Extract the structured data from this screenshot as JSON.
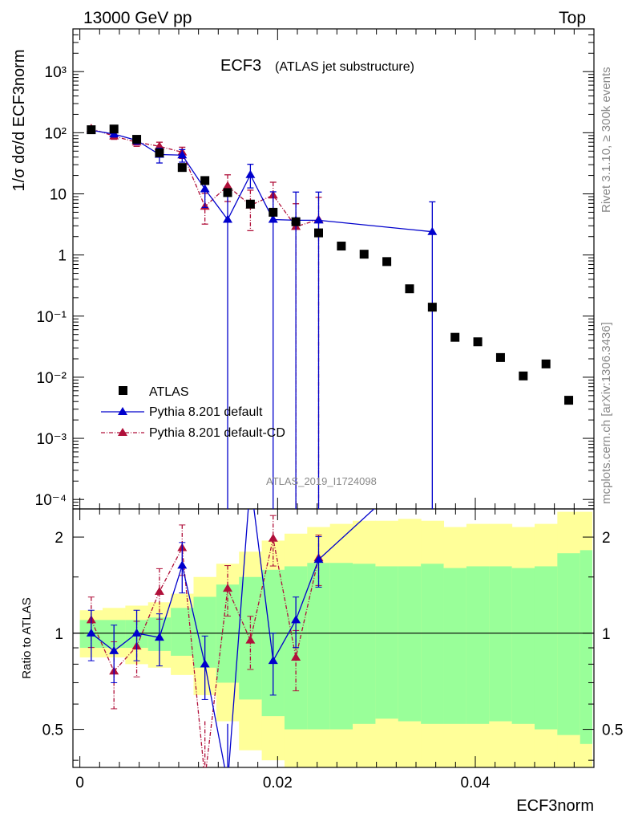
{
  "header": {
    "left": "13000 GeV pp",
    "right": "Top"
  },
  "plot_title": {
    "main": "ECF3",
    "sub": "(ATLAS jet substructure)"
  },
  "side_text": {
    "rivet": "Rivet 3.1.10, ≥ 300k events",
    "mcplots": "mcplots.cern.ch [arXiv:1306.3436]"
  },
  "watermark": "ATLAS_2019_I1724098",
  "axes": {
    "y_top_label": "1/σ dσ/d ECF3norm",
    "y_ratio_label": "Ratio to ATLAS",
    "x_label": "ECF3norm",
    "x_ticks": [
      "0",
      "0.02",
      "0.04"
    ],
    "y_top_ticks": [
      "10⁻⁴",
      "10⁻³",
      "10⁻²",
      "10⁻¹",
      "1",
      "10",
      "10²",
      "10³"
    ],
    "y_ratio_ticks": [
      "0.5",
      "1",
      "2"
    ]
  },
  "legend": [
    {
      "label": "ATLAS",
      "color": "#000000"
    },
    {
      "label": "Pythia 8.201 default",
      "color": "#0000cc"
    },
    {
      "label": "Pythia 8.201 default-CD",
      "color": "#b0103a"
    }
  ],
  "colors": {
    "data": "#000000",
    "default": "#0000cc",
    "cd": "#b0103a",
    "band_outer": "#ffff99",
    "band_inner": "#99ff99"
  },
  "chart_data": {
    "type": "scatter",
    "title": "ECF3 (ATLAS jet substructure)",
    "xlabel": "ECF3norm",
    "ylabel": "1/σ dσ/d ECF3norm",
    "xlim": [
      -0.0007,
      0.052
    ],
    "ylim": [
      7e-05,
      5000
    ],
    "yscale": "log",
    "ratio_ylim": [
      0.38,
      2.45
    ],
    "ratio_yscale": "log",
    "x": [
      0.00115,
      0.00345,
      0.00575,
      0.00805,
      0.01035,
      0.01265,
      0.01495,
      0.01725,
      0.01955,
      0.02185,
      0.02415,
      0.02645,
      0.02875,
      0.03105,
      0.03335,
      0.03565,
      0.03795,
      0.04025,
      0.04255,
      0.04485,
      0.04715,
      0.04945
    ],
    "series": [
      {
        "name": "ATLAS",
        "values": [
          112,
          115,
          78,
          47,
          27,
          16.5,
          10.5,
          6.8,
          5.0,
          3.5,
          2.3,
          1.4,
          1.03,
          0.78,
          0.28,
          0.14,
          0.045,
          0.038,
          0.021,
          0.0105,
          0.0165,
          0.0042
        ]
      },
      {
        "name": "Pythia 8.201 default",
        "x": [
          0.00115,
          0.00345,
          0.00575,
          0.00805,
          0.01035,
          0.01265,
          0.01495,
          0.01725,
          0.01955,
          0.02185,
          0.02415,
          0.03565
        ],
        "values": [
          110,
          95,
          75,
          44,
          43,
          12,
          3.8,
          20.5,
          3.8,
          3.7,
          3.7,
          2.4
        ],
        "err_low": [
          7,
          10,
          10,
          12,
          10,
          6,
          3.8,
          8,
          3.8,
          3.7,
          3.7,
          2.4
        ],
        "err_high": [
          7,
          10,
          10,
          12,
          10,
          6,
          7,
          10,
          7,
          7,
          7,
          5
        ]
      },
      {
        "name": "Pythia 8.201 default-CD",
        "x": [
          0.00115,
          0.00345,
          0.00575,
          0.00805,
          0.01035,
          0.01265,
          0.01495,
          0.01725,
          0.01955,
          0.02185,
          0.02415
        ],
        "values": [
          117,
          88,
          70,
          60,
          48,
          6.2,
          13.5,
          6.5,
          9.5,
          2.9,
          3.8
        ],
        "err_low": [
          8,
          10,
          10,
          10,
          10,
          3,
          6,
          4,
          4,
          2.9,
          3.8
        ],
        "err_high": [
          8,
          10,
          10,
          10,
          10,
          4,
          7,
          5,
          6,
          4,
          5
        ]
      }
    ],
    "ratio": {
      "default": [
        1.0,
        0.88,
        1.0,
        0.97,
        1.63,
        0.8,
        0.34,
        3.0,
        0.82,
        1.1,
        1.7,
        3.6
      ],
      "cd": [
        1.1,
        0.76,
        0.91,
        1.35,
        1.85,
        0.35,
        1.38,
        0.95,
        1.98,
        0.84,
        1.72
      ]
    },
    "bands": {
      "edges": [
        0.0,
        0.0023,
        0.0046,
        0.0069,
        0.0092,
        0.0115,
        0.0138,
        0.0161,
        0.0184,
        0.0207,
        0.023,
        0.0253,
        0.0276,
        0.0299,
        0.0322,
        0.0345,
        0.0368,
        0.0391,
        0.0414,
        0.0437,
        0.046,
        0.0483,
        0.0506,
        0.0518
      ],
      "inner_lo": [
        0.9,
        0.9,
        0.9,
        0.88,
        0.85,
        0.78,
        0.7,
        0.62,
        0.55,
        0.5,
        0.5,
        0.5,
        0.52,
        0.54,
        0.53,
        0.52,
        0.52,
        0.52,
        0.53,
        0.52,
        0.5,
        0.48,
        0.45
      ],
      "inner_hi": [
        1.1,
        1.1,
        1.1,
        1.12,
        1.2,
        1.3,
        1.42,
        1.5,
        1.58,
        1.62,
        1.66,
        1.66,
        1.65,
        1.62,
        1.62,
        1.65,
        1.6,
        1.62,
        1.62,
        1.6,
        1.62,
        1.78,
        1.82
      ],
      "outer_lo": [
        0.84,
        0.84,
        0.8,
        0.78,
        0.74,
        0.64,
        0.53,
        0.43,
        0.4,
        0.38,
        0.36,
        0.37,
        0.36,
        0.36,
        0.38,
        0.36,
        0.36,
        0.37,
        0.35,
        0.35,
        0.33,
        0.33,
        0.33
      ],
      "outer_hi": [
        1.18,
        1.2,
        1.22,
        1.25,
        1.33,
        1.5,
        1.65,
        1.8,
        1.95,
        2.05,
        2.15,
        2.2,
        2.25,
        2.25,
        2.28,
        2.25,
        2.15,
        2.2,
        2.2,
        2.15,
        2.2,
        2.4,
        2.4
      ]
    }
  }
}
